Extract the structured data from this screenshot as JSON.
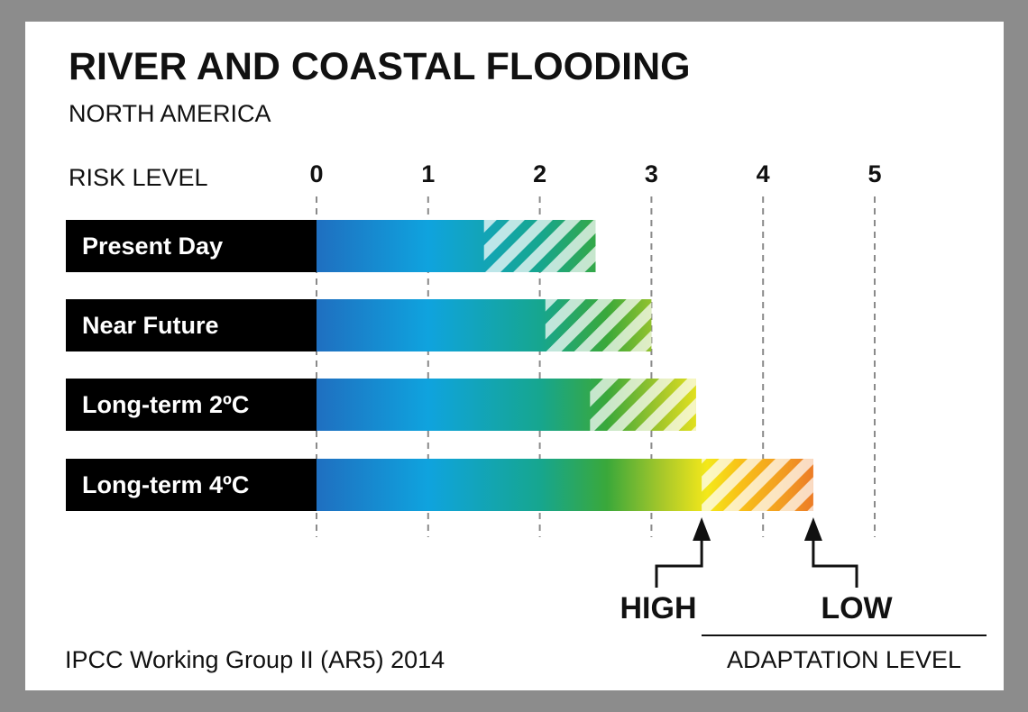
{
  "chart_data": {
    "type": "bar",
    "title": "RIVER AND COASTAL FLOODING",
    "subtitle": "NORTH AMERICA",
    "xlabel": "RISK LEVEL",
    "xlim": [
      0,
      5
    ],
    "ticks": [
      "0",
      "1",
      "2",
      "3",
      "4",
      "5"
    ],
    "grid": true,
    "categories": [
      "Present Day",
      "Near Future",
      "Long-term 2ºC",
      "Long-term 4ºC"
    ],
    "series": [
      {
        "name": "HIGH",
        "values": [
          1.5,
          2.05,
          2.45,
          3.45
        ]
      },
      {
        "name": "LOW",
        "values": [
          2.5,
          3.0,
          3.4,
          4.45
        ]
      }
    ],
    "adaptation": {
      "high_label": "HIGH",
      "low_label": "LOW",
      "caption": "ADAPTATION  LEVEL"
    },
    "source": "IPCC Working Group II (AR5) 2014"
  }
}
